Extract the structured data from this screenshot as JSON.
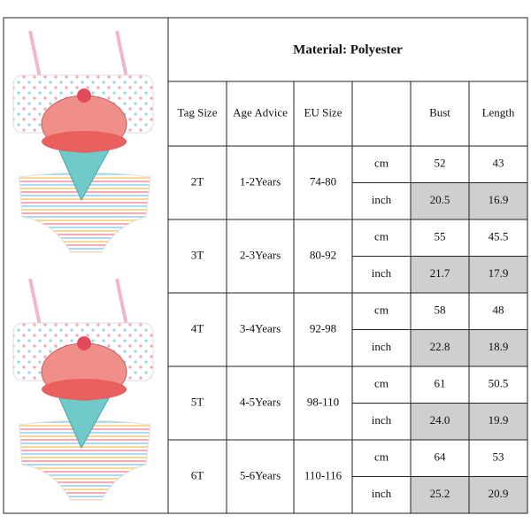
{
  "title": "Material: Polyester",
  "table": {
    "header": [
      "Tag Size",
      "Age Advice",
      "EU Size",
      "Bust",
      "Length"
    ],
    "rows": [
      {
        "tag": "2T",
        "age": "1-2Years",
        "eu": "74-80",
        "units": [
          "cm",
          "inch"
        ],
        "bust": [
          "52",
          "20.5"
        ],
        "length": [
          "43",
          "16.9"
        ]
      },
      {
        "tag": "3T",
        "age": "2-3Years",
        "eu": "80-92",
        "units": [
          "cm",
          "inch"
        ],
        "bust": [
          "55",
          "21.7"
        ],
        "length": [
          "45.5",
          "17.9"
        ]
      },
      {
        "tag": "4T",
        "age": "3-4Years",
        "eu": "92-98",
        "units": [
          "cm",
          "inch"
        ],
        "bust": [
          "58",
          "22.8"
        ],
        "length": [
          "48",
          "18.9"
        ]
      },
      {
        "tag": "5T",
        "age": "4-5Years",
        "eu": "98-110",
        "units": [
          "cm",
          "inch"
        ],
        "bust": [
          "61",
          "24.0"
        ],
        "length": [
          "50.5",
          "19.9"
        ]
      },
      {
        "tag": "6T",
        "age": "5-6Years",
        "eu": "110-116",
        "units": [
          "cm",
          "inch"
        ],
        "bust": [
          "64",
          "25.2"
        ],
        "length": [
          "53",
          "20.9"
        ]
      }
    ]
  }
}
